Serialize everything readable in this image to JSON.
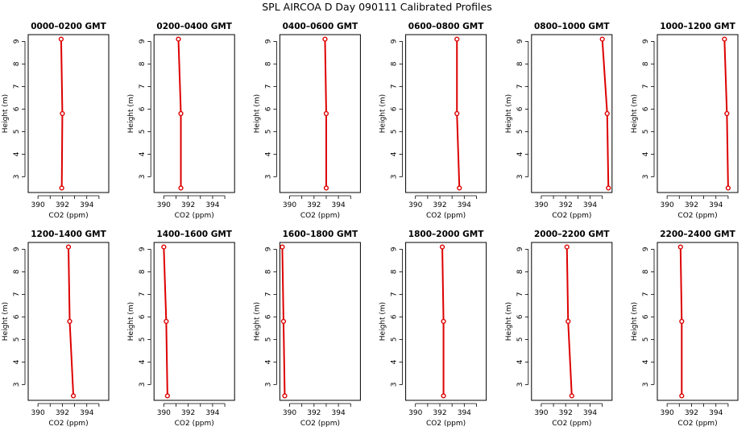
{
  "title": "SPL AIRCOA D  Day 090111  Calibrated Profiles",
  "chart_data": [
    {
      "type": "line",
      "title": "0000–0200 GMT",
      "xlabel": "CO2 (ppm)",
      "ylabel": "Height (m)",
      "xlim": [
        389.2,
        395.8
      ],
      "ylim": [
        2.3,
        9.3
      ],
      "xticks": [
        390,
        392,
        394
      ],
      "yticks": [
        3,
        4,
        5,
        6,
        7,
        8,
        9
      ],
      "points": [
        {
          "x": 391.9,
          "y": 9.1
        },
        {
          "x": 392.0,
          "y": 5.8
        },
        {
          "x": 391.95,
          "y": 2.5
        }
      ]
    },
    {
      "type": "line",
      "title": "0200–0400 GMT",
      "xlabel": "CO2 (ppm)",
      "ylabel": "Height (m)",
      "xlim": [
        389.2,
        395.8
      ],
      "ylim": [
        2.3,
        9.3
      ],
      "xticks": [
        390,
        392,
        394
      ],
      "yticks": [
        3,
        4,
        5,
        6,
        7,
        8,
        9
      ],
      "points": [
        {
          "x": 391.2,
          "y": 9.1
        },
        {
          "x": 391.4,
          "y": 5.8
        },
        {
          "x": 391.4,
          "y": 2.5
        }
      ]
    },
    {
      "type": "line",
      "title": "0400–0600 GMT",
      "xlabel": "CO2 (ppm)",
      "ylabel": "Height (m)",
      "xlim": [
        389.2,
        395.8
      ],
      "ylim": [
        2.3,
        9.3
      ],
      "xticks": [
        390,
        392,
        394
      ],
      "yticks": [
        3,
        4,
        5,
        6,
        7,
        8,
        9
      ],
      "points": [
        {
          "x": 392.9,
          "y": 9.1
        },
        {
          "x": 393.0,
          "y": 5.8
        },
        {
          "x": 393.0,
          "y": 2.5
        }
      ]
    },
    {
      "type": "line",
      "title": "0600–0800 GMT",
      "xlabel": "CO2 (ppm)",
      "ylabel": "Height (m)",
      "xlim": [
        389.2,
        395.8
      ],
      "ylim": [
        2.3,
        9.3
      ],
      "xticks": [
        390,
        392,
        394
      ],
      "yticks": [
        3,
        4,
        5,
        6,
        7,
        8,
        9
      ],
      "points": [
        {
          "x": 393.4,
          "y": 9.1
        },
        {
          "x": 393.4,
          "y": 5.8
        },
        {
          "x": 393.6,
          "y": 2.5
        }
      ]
    },
    {
      "type": "line",
      "title": "0800–1000 GMT",
      "xlabel": "CO2 (ppm)",
      "ylabel": "Height (m)",
      "xlim": [
        389.2,
        395.8
      ],
      "ylim": [
        2.3,
        9.3
      ],
      "xticks": [
        390,
        392,
        394
      ],
      "yticks": [
        3,
        4,
        5,
        6,
        7,
        8,
        9
      ],
      "points": [
        {
          "x": 395.0,
          "y": 9.1
        },
        {
          "x": 395.4,
          "y": 5.8
        },
        {
          "x": 395.5,
          "y": 2.5
        }
      ]
    },
    {
      "type": "line",
      "title": "1000–1200 GMT",
      "xlabel": "CO2 (ppm)",
      "ylabel": "Height (m)",
      "xlim": [
        389.2,
        395.8
      ],
      "ylim": [
        2.3,
        9.3
      ],
      "xticks": [
        390,
        392,
        394
      ],
      "yticks": [
        3,
        4,
        5,
        6,
        7,
        8,
        9
      ],
      "points": [
        {
          "x": 394.7,
          "y": 9.1
        },
        {
          "x": 394.9,
          "y": 5.8
        },
        {
          "x": 395.0,
          "y": 2.5
        }
      ]
    },
    {
      "type": "line",
      "title": "1200–1400 GMT",
      "xlabel": "CO2 (ppm)",
      "ylabel": "Height (m)",
      "xlim": [
        389.2,
        395.8
      ],
      "ylim": [
        2.3,
        9.3
      ],
      "xticks": [
        390,
        392,
        394
      ],
      "yticks": [
        3,
        4,
        5,
        6,
        7,
        8,
        9
      ],
      "points": [
        {
          "x": 392.5,
          "y": 9.1
        },
        {
          "x": 392.6,
          "y": 5.8
        },
        {
          "x": 392.9,
          "y": 2.5
        }
      ]
    },
    {
      "type": "line",
      "title": "1400–1600 GMT",
      "xlabel": "CO2 (ppm)",
      "ylabel": "Height (m)",
      "xlim": [
        389.2,
        395.8
      ],
      "ylim": [
        2.3,
        9.3
      ],
      "xticks": [
        390,
        392,
        394
      ],
      "yticks": [
        3,
        4,
        5,
        6,
        7,
        8,
        9
      ],
      "points": [
        {
          "x": 390.0,
          "y": 9.1
        },
        {
          "x": 390.2,
          "y": 5.8
        },
        {
          "x": 390.3,
          "y": 2.5
        }
      ]
    },
    {
      "type": "line",
      "title": "1600–1800 GMT",
      "xlabel": "CO2 (ppm)",
      "ylabel": "Height (m)",
      "xlim": [
        389.2,
        395.8
      ],
      "ylim": [
        2.3,
        9.3
      ],
      "xticks": [
        390,
        392,
        394
      ],
      "yticks": [
        3,
        4,
        5,
        6,
        7,
        8,
        9
      ],
      "points": [
        {
          "x": 389.4,
          "y": 9.1
        },
        {
          "x": 389.5,
          "y": 5.8
        },
        {
          "x": 389.6,
          "y": 2.5
        }
      ]
    },
    {
      "type": "line",
      "title": "1800–2000 GMT",
      "xlabel": "CO2 (ppm)",
      "ylabel": "Height (m)",
      "xlim": [
        389.2,
        395.8
      ],
      "ylim": [
        2.3,
        9.3
      ],
      "xticks": [
        390,
        392,
        394
      ],
      "yticks": [
        3,
        4,
        5,
        6,
        7,
        8,
        9
      ],
      "points": [
        {
          "x": 392.2,
          "y": 9.1
        },
        {
          "x": 392.3,
          "y": 5.8
        },
        {
          "x": 392.3,
          "y": 2.5
        }
      ]
    },
    {
      "type": "line",
      "title": "2000–2200 GMT",
      "xlabel": "CO2 (ppm)",
      "ylabel": "Height (m)",
      "xlim": [
        389.2,
        395.8
      ],
      "ylim": [
        2.3,
        9.3
      ],
      "xticks": [
        390,
        392,
        394
      ],
      "yticks": [
        3,
        4,
        5,
        6,
        7,
        8,
        9
      ],
      "points": [
        {
          "x": 392.1,
          "y": 9.1
        },
        {
          "x": 392.2,
          "y": 5.8
        },
        {
          "x": 392.5,
          "y": 2.5
        }
      ]
    },
    {
      "type": "line",
      "title": "2200–2400 GMT",
      "xlabel": "CO2 (ppm)",
      "ylabel": "Height (m)",
      "xlim": [
        389.2,
        395.8
      ],
      "ylim": [
        2.3,
        9.3
      ],
      "xticks": [
        390,
        392,
        394
      ],
      "yticks": [
        3,
        4,
        5,
        6,
        7,
        8,
        9
      ],
      "points": [
        {
          "x": 391.1,
          "y": 9.1
        },
        {
          "x": 391.2,
          "y": 5.8
        },
        {
          "x": 391.2,
          "y": 2.5
        }
      ]
    }
  ],
  "colors": {
    "series": "#dd0000",
    "axis": "#000000"
  }
}
